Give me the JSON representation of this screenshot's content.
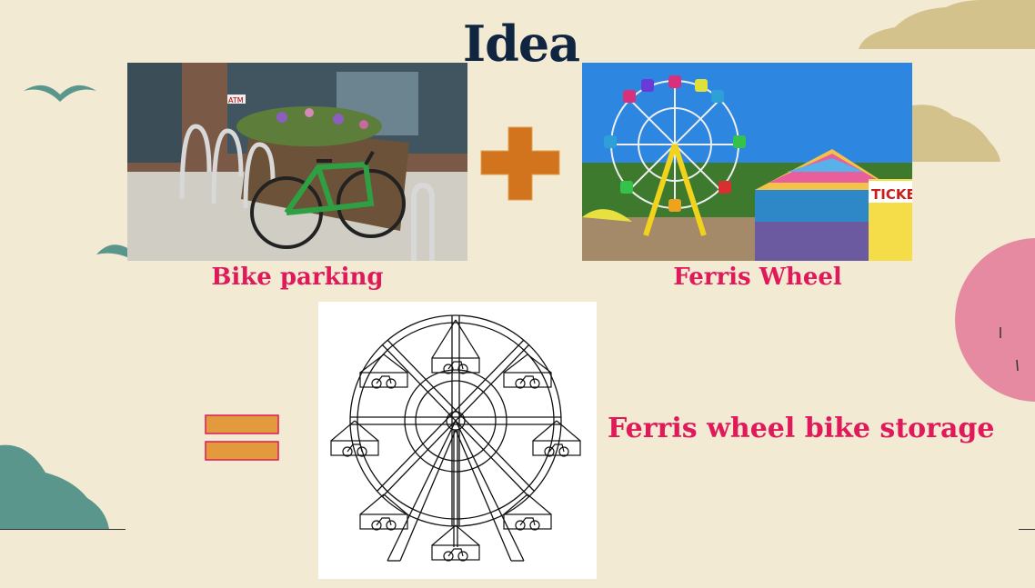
{
  "slide": {
    "title": "Idea",
    "left_caption": "Bike parking",
    "right_caption": "Ferris Wheel",
    "result_caption": "Ferris wheel bike storage"
  },
  "photos": {
    "left_signs": [
      "ATM"
    ],
    "right_signs": [
      "TICKE"
    ]
  },
  "icons": {
    "plus": "plus-icon",
    "equals": "equals-icon"
  },
  "colors": {
    "background": "#f2ead3",
    "title": "#0f2540",
    "caption": "#e0195a",
    "plus": "#d2741d",
    "equals_fill": "#e39a3d",
    "equals_border": "#e0195a",
    "teal": "#5a968c",
    "tan": "#d3c28c",
    "pink": "#e58aa0"
  }
}
